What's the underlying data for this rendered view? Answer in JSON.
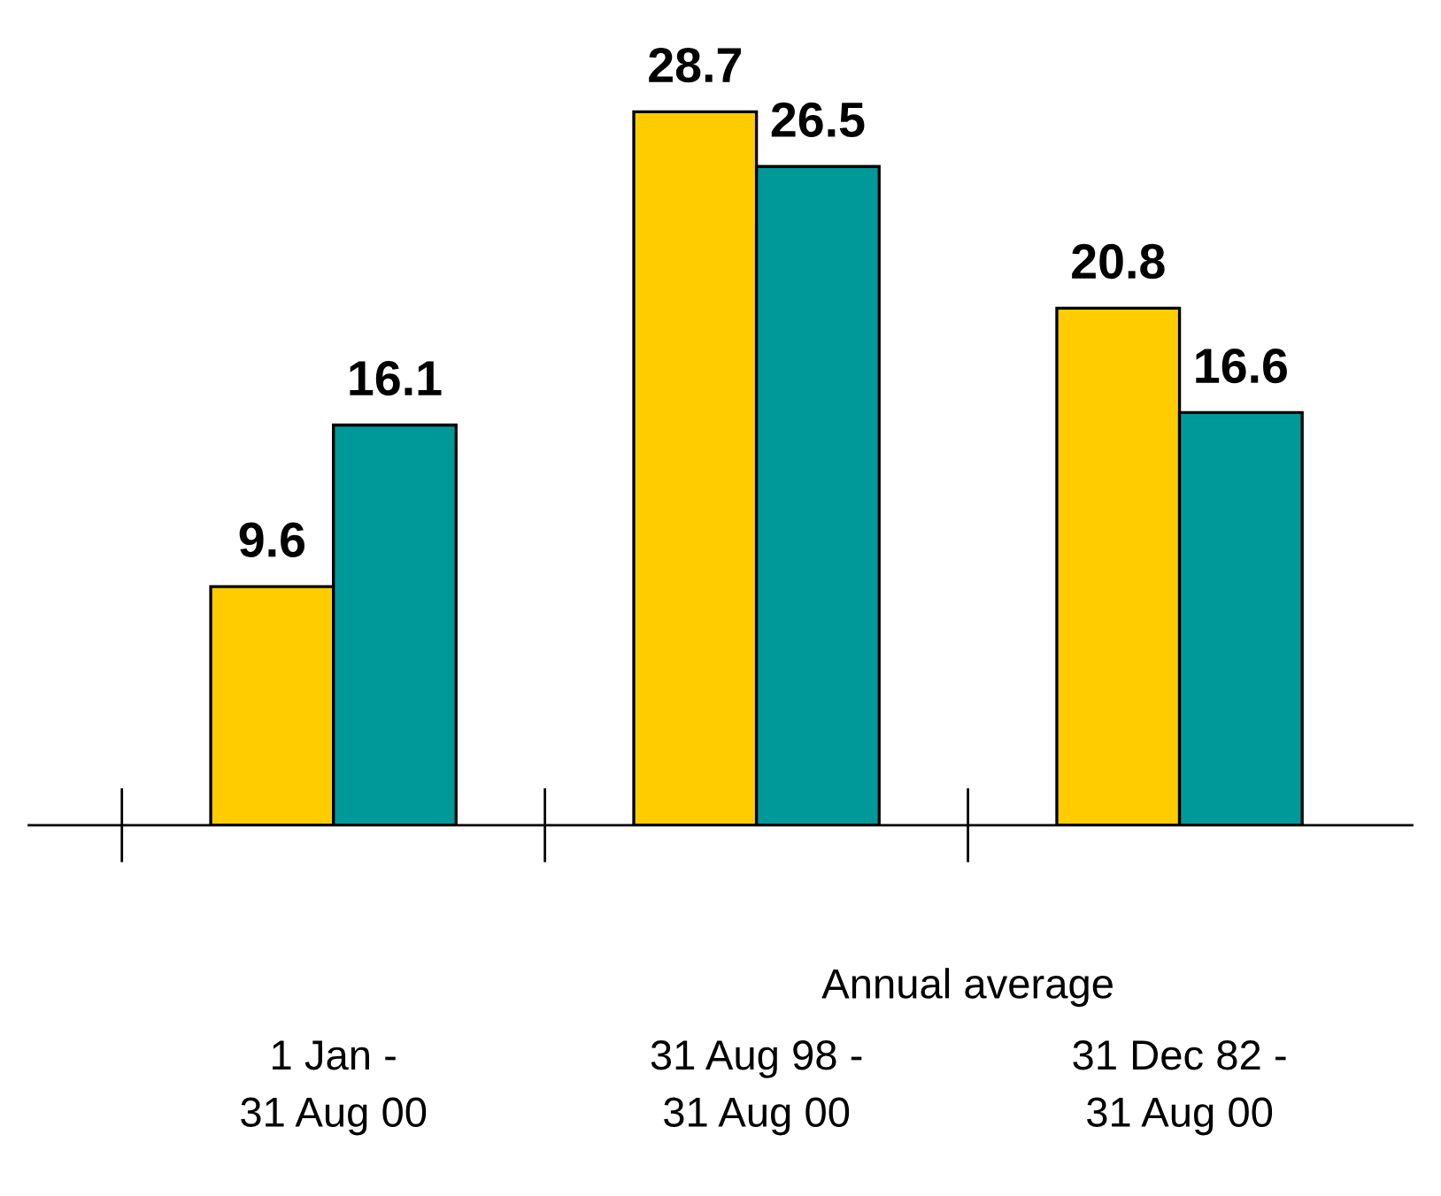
{
  "chart_data": {
    "type": "bar",
    "categories": [
      "1 Jan -\n31 Aug 00",
      "31 Aug 98 -\n31 Aug 00",
      "31 Dec 82 -\n31 Aug 00"
    ],
    "series": [
      {
        "color": "#ffcc00",
        "values": [
          9.6,
          28.7,
          20.8
        ]
      },
      {
        "color": "#009999",
        "values": [
          16.1,
          26.5,
          16.6
        ]
      }
    ],
    "data_labels": true,
    "annotations": [
      "Annual average"
    ]
  }
}
